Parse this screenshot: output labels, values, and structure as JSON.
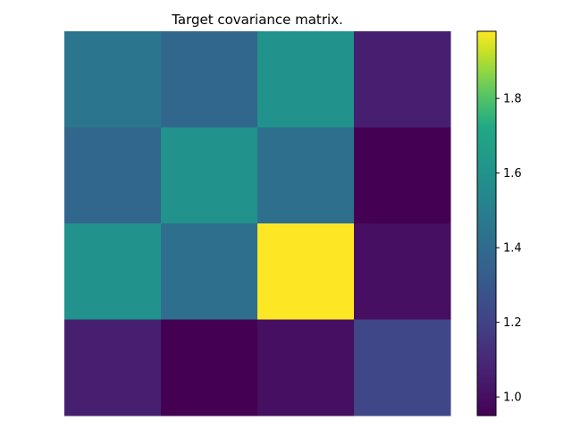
{
  "chart_data": {
    "type": "heatmap",
    "title": "Target covariance matrix.",
    "rows": 4,
    "cols": 4,
    "values": [
      [
        1.45,
        1.38,
        1.6,
        1.06
      ],
      [
        1.38,
        1.6,
        1.42,
        0.95
      ],
      [
        1.6,
        1.42,
        1.98,
        1.0
      ],
      [
        1.06,
        0.95,
        1.0,
        1.22
      ]
    ],
    "colormap": "viridis",
    "colorbar": {
      "vmin": 0.95,
      "vmax": 1.98,
      "ticks": [
        1.0,
        1.2,
        1.4,
        1.6,
        1.8
      ],
      "tick_labels": [
        "1.0",
        "1.2",
        "1.4",
        "1.6",
        "1.8"
      ]
    },
    "axes_visible": false
  }
}
